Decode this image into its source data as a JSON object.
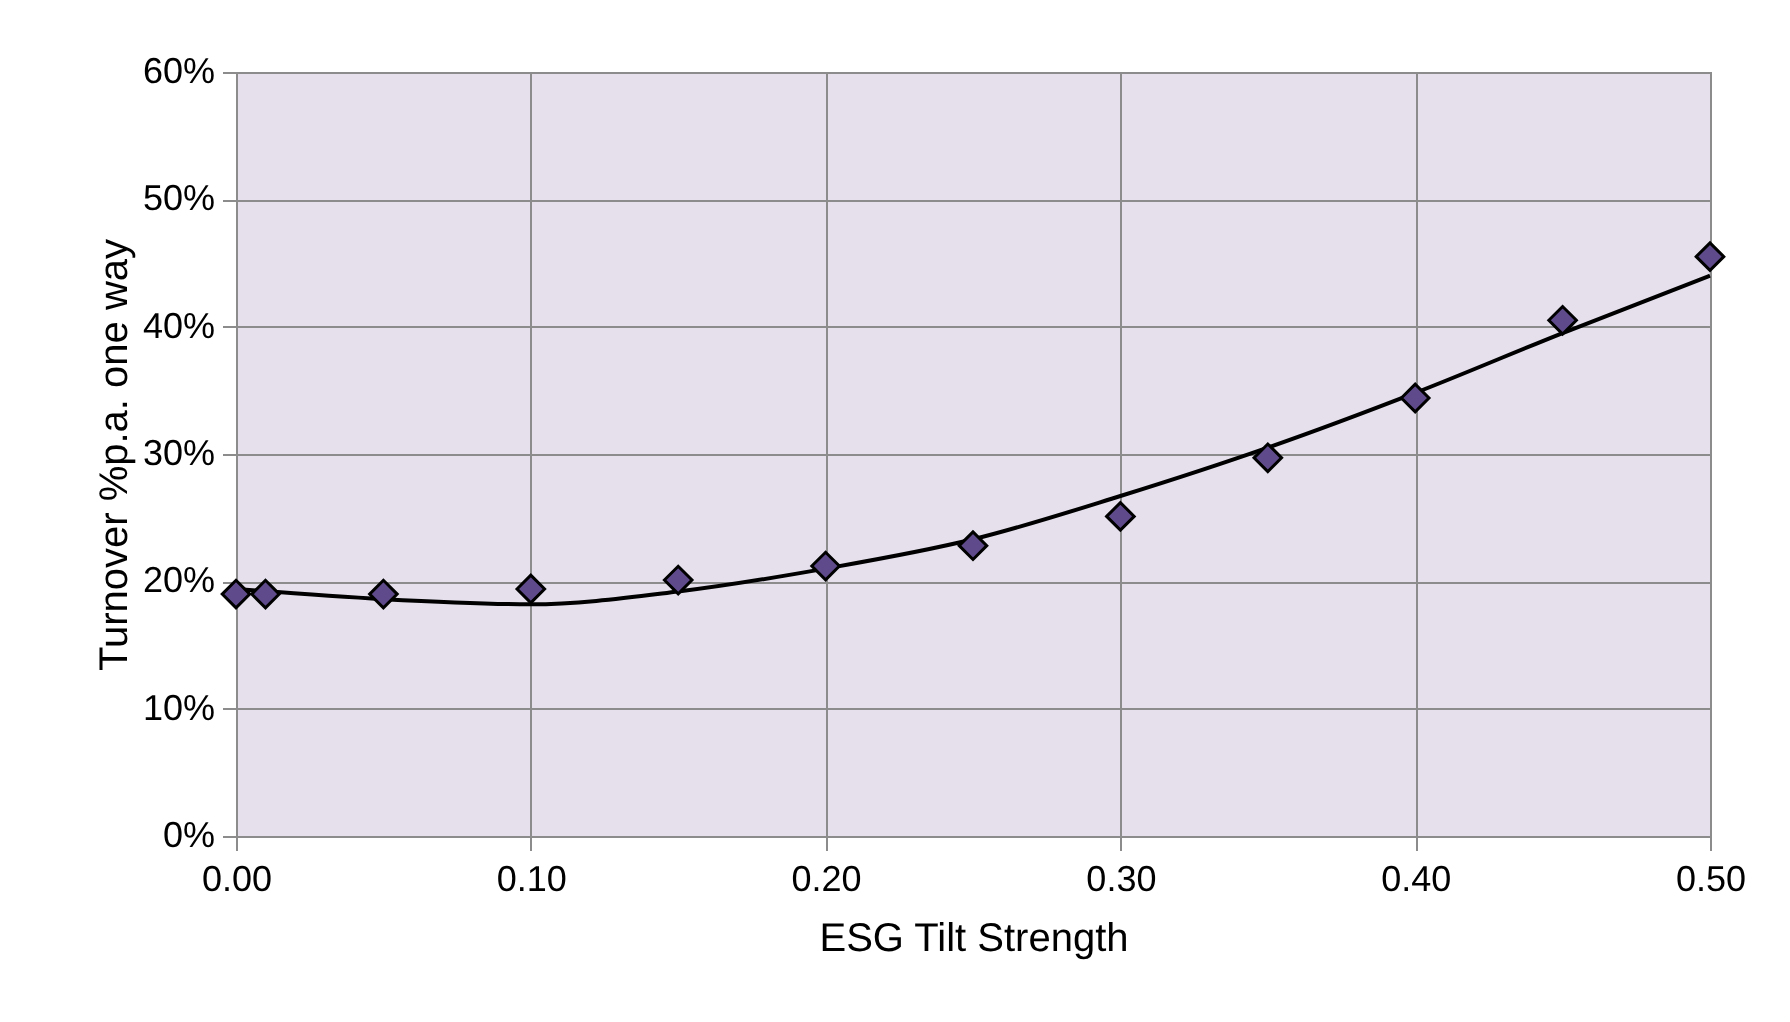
{
  "chart_data": {
    "type": "scatter",
    "xlabel": "ESG Tilt Strength",
    "ylabel": "Turnover %p.a. one way",
    "x": [
      0,
      0.01,
      0.05,
      0.1,
      0.15,
      0.2,
      0.25,
      0.3,
      0.35,
      0.4,
      0.45,
      0.5
    ],
    "series": [
      {
        "color": "#5f4b8b",
        "marker": "diamond",
        "values": [
          19.0,
          19.0,
          19.0,
          19.4,
          20.1,
          21.2,
          22.8,
          25.1,
          29.7,
          34.4,
          40.5,
          45.5
        ]
      },
      {
        "type": "line",
        "color": "#000000",
        "line_style": "solid",
        "marker": "none",
        "x": [
          0,
          0.05,
          0.1,
          0.15,
          0.2,
          0.25,
          0.3,
          0.35,
          0.4,
          0.45,
          0.5
        ],
        "values": [
          19.4,
          18.6,
          18.2,
          19.2,
          21.0,
          23.3,
          26.7,
          30.5,
          34.8,
          39.5,
          44.0
        ]
      }
    ],
    "xlim": [
      0,
      0.5
    ],
    "ylim": [
      0,
      60
    ],
    "xticks": [
      {
        "value": 0,
        "label": "0.00"
      },
      {
        "value": 0.1,
        "label": "0.10"
      },
      {
        "value": 0.2,
        "label": "0.20"
      },
      {
        "value": 0.3,
        "label": "0.30"
      },
      {
        "value": 0.4,
        "label": "0.40"
      },
      {
        "value": 0.5,
        "label": "0.50"
      }
    ],
    "yticks": [
      {
        "value": 0,
        "label": "0%"
      },
      {
        "value": 10,
        "label": "10%"
      },
      {
        "value": 20,
        "label": "20%"
      },
      {
        "value": 30,
        "label": "30%"
      },
      {
        "value": 40,
        "label": "40%"
      },
      {
        "value": 50,
        "label": "50%"
      },
      {
        "value": 60,
        "label": "60%"
      }
    ],
    "grid": true
  }
}
